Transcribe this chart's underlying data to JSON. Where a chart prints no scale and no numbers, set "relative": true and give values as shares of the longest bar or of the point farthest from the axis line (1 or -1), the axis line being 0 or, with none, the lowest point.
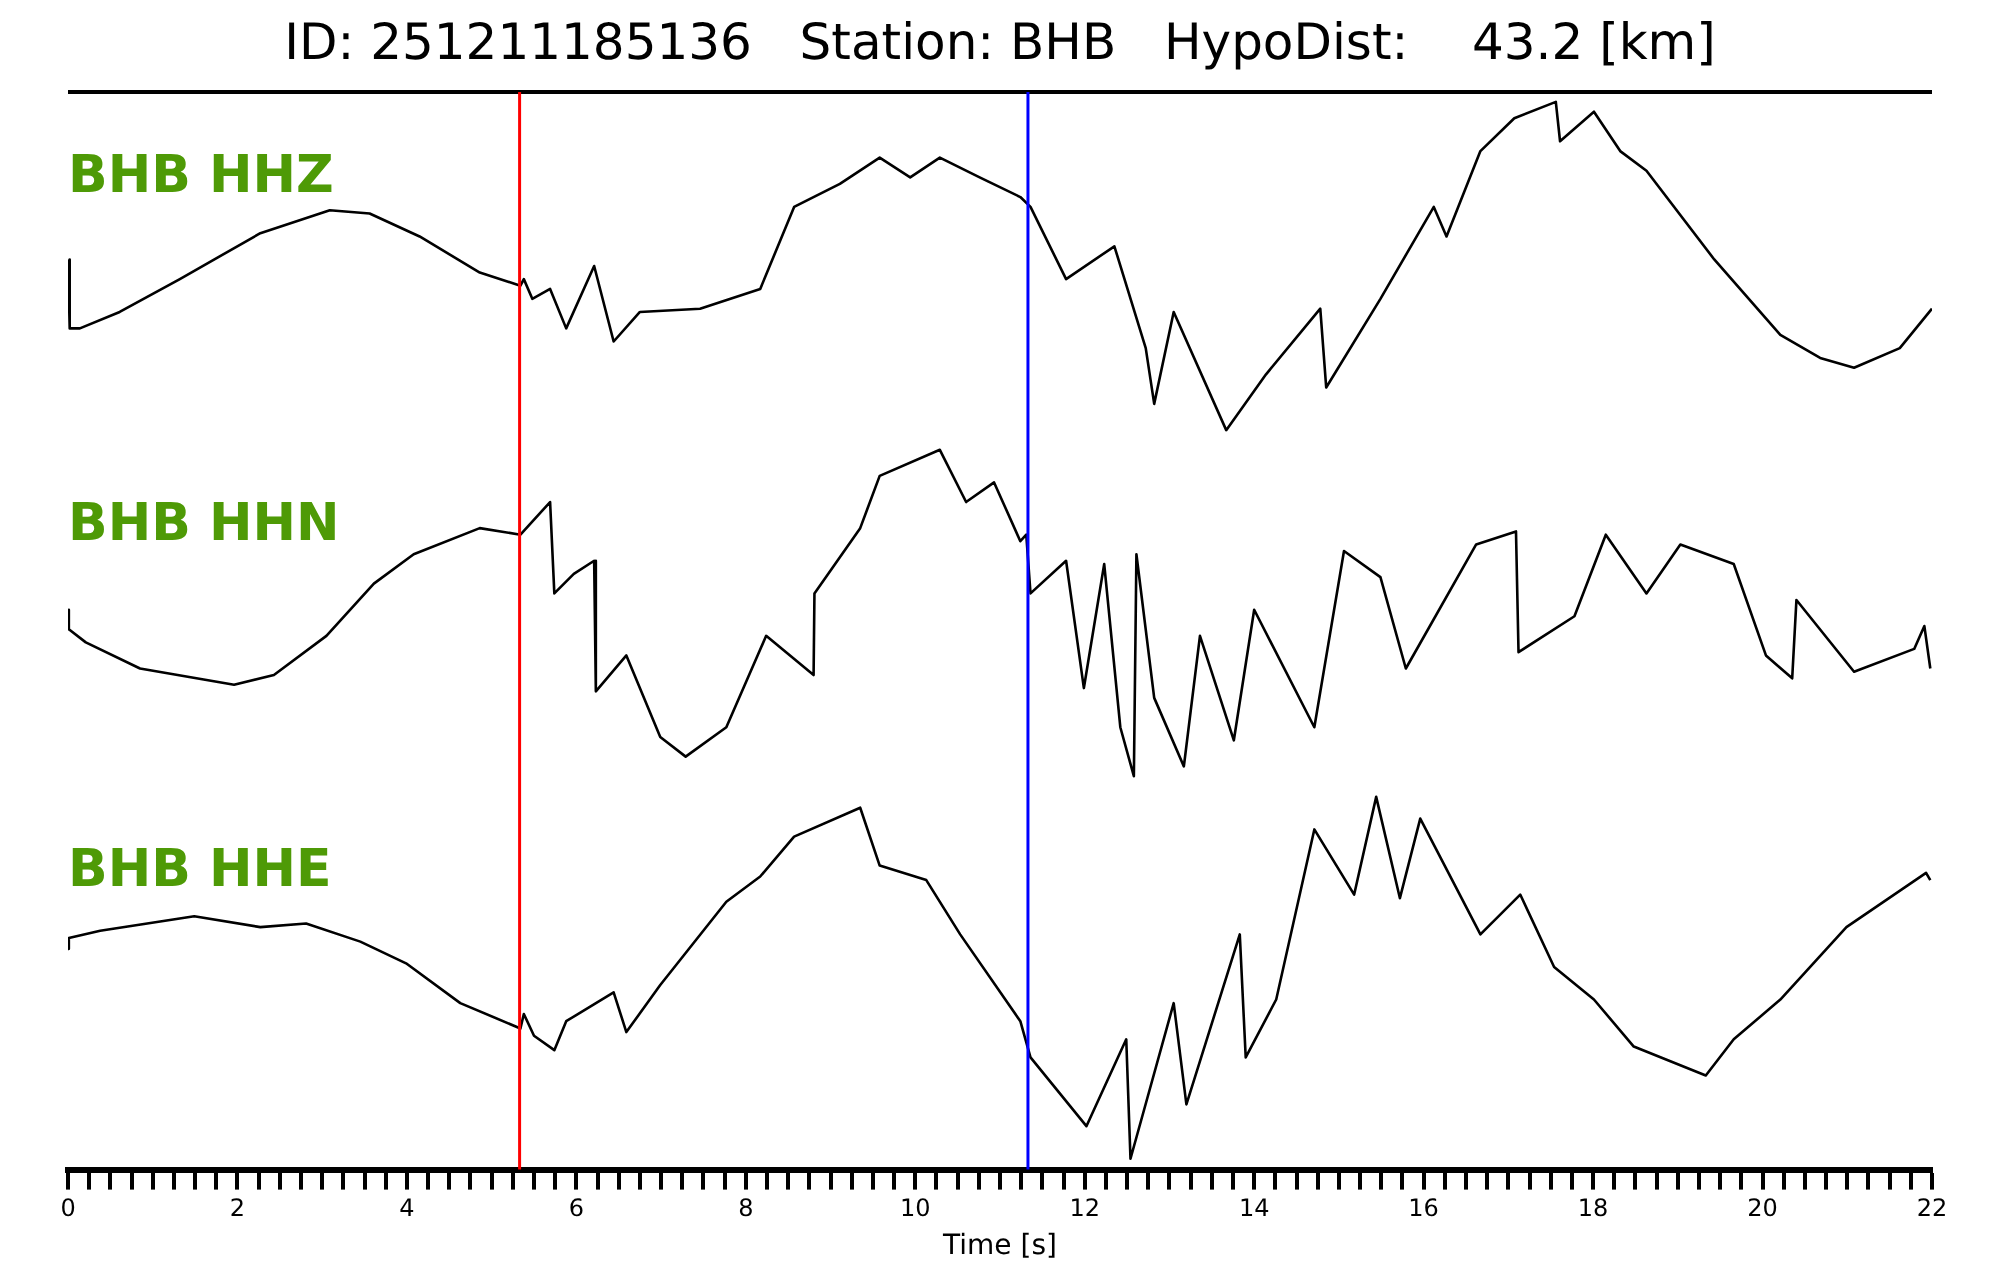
{
  "chart_data": [
    {
      "type": "line",
      "title": "ID: 251211185136   Station: BHB   HypoDist:    43.2 [km]",
      "relative": true,
      "xlim": [
        0,
        22
      ],
      "tick_labels": false,
      "x": [
        0,
        0.02,
        0.14,
        0.61,
        1.32,
        2.27,
        3.09,
        3.56,
        4.15,
        4.86,
        5.34,
        5.38,
        5.48,
        5.69,
        5.88,
        6.21,
        6.44,
        6.75,
        7.46,
        8.17,
        8.57,
        9.11,
        9.58,
        9.94,
        10.29,
        10.76,
        11.24,
        11.36,
        11.78,
        12.35,
        12.72,
        12.82,
        13.05,
        13.67,
        14.14,
        14.78,
        14.85,
        15.49,
        16.12,
        16.27,
        16.67,
        17.07,
        17.56,
        17.61,
        18.01,
        18.32,
        18.63,
        19.43,
        20.21,
        20.68,
        21.08,
        21.62,
        22
      ],
      "series": [
        {
          "name": "BHB HHZ",
          "color": "#000000",
          "values": [
            0.52,
            0.31,
            0.31,
            0.36,
            0.46,
            0.6,
            0.67,
            0.66,
            0.59,
            0.48,
            0.44,
            0.46,
            0.4,
            0.43,
            0.31,
            0.5,
            0.27,
            0.36,
            0.37,
            0.43,
            0.68,
            0.75,
            0.83,
            0.77,
            0.83,
            0.77,
            0.71,
            0.68,
            0.46,
            0.56,
            0.25,
            0.08,
            0.36,
            0,
            0.17,
            0.37,
            0.13,
            0.4,
            0.68,
            0.59,
            0.85,
            0.95,
            1,
            0.88,
            0.97,
            0.85,
            0.79,
            0.52,
            0.29,
            0.22,
            0.19,
            0.25,
            0.37
          ]
        }
      ],
      "ref_lines": [
        {
          "axis": "x",
          "value": 5.33,
          "color": "#ff0000"
        },
        {
          "axis": "x",
          "value": 11.33,
          "color": "#0000ff"
        }
      ]
    },
    {
      "type": "line",
      "relative": true,
      "xlim": [
        0,
        22
      ],
      "tick_labels": false,
      "x": [
        0,
        0.01,
        0.21,
        0.85,
        1.96,
        2.43,
        3.05,
        3.61,
        4.08,
        4.86,
        5.34,
        5.69,
        5.74,
        5.97,
        6.21,
        6.23,
        6.59,
        6.99,
        7.29,
        7.77,
        8.24,
        8.8,
        8.81,
        9.35,
        9.58,
        10.29,
        10.6,
        10.93,
        11.24,
        11.31,
        11.36,
        11.78,
        11.99,
        12.23,
        12.42,
        12.58,
        12.61,
        12.82,
        13.17,
        13.36,
        13.76,
        14,
        14.71,
        15.06,
        15.49,
        15.79,
        16.62,
        17.09,
        17.12,
        17.78,
        18.15,
        18.63,
        19.03,
        19.66,
        20.04,
        20.35,
        20.4,
        21.08,
        21.79,
        21.91,
        21.98
      ],
      "series": [
        {
          "name": "BHB HHN",
          "color": "#000000",
          "values": [
            0.51,
            0.45,
            0.41,
            0.33,
            0.28,
            0.31,
            0.43,
            0.59,
            0.68,
            0.76,
            0.74,
            0.84,
            0.56,
            0.62,
            0.66,
            0.26,
            0.37,
            0.12,
            0.06,
            0.15,
            0.43,
            0.31,
            0.56,
            0.76,
            0.92,
            1,
            0.84,
            0.9,
            0.72,
            0.74,
            0.56,
            0.66,
            0.27,
            0.65,
            0.15,
            0,
            0.68,
            0.24,
            0.03,
            0.43,
            0.11,
            0.51,
            0.15,
            0.69,
            0.61,
            0.33,
            0.71,
            0.75,
            0.38,
            0.49,
            0.74,
            0.56,
            0.71,
            0.65,
            0.37,
            0.3,
            0.54,
            0.32,
            0.39,
            0.46,
            0.33
          ]
        }
      ],
      "ref_lines": [
        {
          "axis": "x",
          "value": 5.33,
          "color": "#ff0000"
        },
        {
          "axis": "x",
          "value": 11.33,
          "color": "#0000ff"
        }
      ]
    },
    {
      "type": "line",
      "relative": true,
      "xlim": [
        0,
        22
      ],
      "xlabel": "Time [s]",
      "xticks": [
        0,
        {
          "value": 0.25,
          "label": null
        },
        {
          "value": 0.5,
          "label": null
        },
        {
          "value": 0.75,
          "label": null
        },
        {
          "value": 1,
          "label": null
        },
        {
          "value": 1.25,
          "label": null
        },
        {
          "value": 1.5,
          "label": null
        },
        {
          "value": 1.75,
          "label": null
        },
        2,
        {
          "value": 2.25,
          "label": null
        },
        {
          "value": 2.5,
          "label": null
        },
        {
          "value": 2.75,
          "label": null
        },
        {
          "value": 3,
          "label": null
        },
        {
          "value": 3.25,
          "label": null
        },
        {
          "value": 3.5,
          "label": null
        },
        {
          "value": 3.75,
          "label": null
        },
        4,
        {
          "value": 4.25,
          "label": null
        },
        {
          "value": 4.5,
          "label": null
        },
        {
          "value": 4.75,
          "label": null
        },
        {
          "value": 5,
          "label": null
        },
        {
          "value": 5.25,
          "label": null
        },
        {
          "value": 5.5,
          "label": null
        },
        {
          "value": 5.75,
          "label": null
        },
        6,
        {
          "value": 6.25,
          "label": null
        },
        {
          "value": 6.5,
          "label": null
        },
        {
          "value": 6.75,
          "label": null
        },
        {
          "value": 7,
          "label": null
        },
        {
          "value": 7.25,
          "label": null
        },
        {
          "value": 7.5,
          "label": null
        },
        {
          "value": 7.75,
          "label": null
        },
        8,
        {
          "value": 8.25,
          "label": null
        },
        {
          "value": 8.5,
          "label": null
        },
        {
          "value": 8.75,
          "label": null
        },
        {
          "value": 9,
          "label": null
        },
        {
          "value": 9.25,
          "label": null
        },
        {
          "value": 9.5,
          "label": null
        },
        {
          "value": 9.75,
          "label": null
        },
        10,
        {
          "value": 10.25,
          "label": null
        },
        {
          "value": 10.5,
          "label": null
        },
        {
          "value": 10.75,
          "label": null
        },
        {
          "value": 11,
          "label": null
        },
        {
          "value": 11.25,
          "label": null
        },
        {
          "value": 11.5,
          "label": null
        },
        {
          "value": 11.75,
          "label": null
        },
        12,
        {
          "value": 12.25,
          "label": null
        },
        {
          "value": 12.5,
          "label": null
        },
        {
          "value": 12.75,
          "label": null
        },
        {
          "value": 13,
          "label": null
        },
        {
          "value": 13.25,
          "label": null
        },
        {
          "value": 13.5,
          "label": null
        },
        {
          "value": 13.75,
          "label": null
        },
        14,
        {
          "value": 14.25,
          "label": null
        },
        {
          "value": 14.5,
          "label": null
        },
        {
          "value": 14.75,
          "label": null
        },
        {
          "value": 15,
          "label": null
        },
        {
          "value": 15.25,
          "label": null
        },
        {
          "value": 15.5,
          "label": null
        },
        {
          "value": 15.75,
          "label": null
        },
        16,
        {
          "value": 16.25,
          "label": null
        },
        {
          "value": 16.5,
          "label": null
        },
        {
          "value": 16.75,
          "label": null
        },
        {
          "value": 17,
          "label": null
        },
        {
          "value": 17.25,
          "label": null
        },
        {
          "value": 17.5,
          "label": null
        },
        {
          "value": 17.75,
          "label": null
        },
        18,
        {
          "value": 18.25,
          "label": null
        },
        {
          "value": 18.5,
          "label": null
        },
        {
          "value": 18.75,
          "label": null
        },
        {
          "value": 19,
          "label": null
        },
        {
          "value": 19.25,
          "label": null
        },
        {
          "value": 19.5,
          "label": null
        },
        {
          "value": 19.75,
          "label": null
        },
        20,
        {
          "value": 20.25,
          "label": null
        },
        {
          "value": 20.5,
          "label": null
        },
        {
          "value": 20.75,
          "label": null
        },
        {
          "value": 21,
          "label": null
        },
        {
          "value": 21.25,
          "label": null
        },
        {
          "value": 21.5,
          "label": null
        },
        {
          "value": 21.75,
          "label": null
        },
        22
      ],
      "x": [
        0,
        0.01,
        0.38,
        1.49,
        2.27,
        2.81,
        3.45,
        3.99,
        4.63,
        5.34,
        5.38,
        5.5,
        5.74,
        5.88,
        6.44,
        6.59,
        6.99,
        7.77,
        8.17,
        8.57,
        9.35,
        9.58,
        10.13,
        10.53,
        11.24,
        11.36,
        12.02,
        12.49,
        12.54,
        13.05,
        13.2,
        13.83,
        13.9,
        14.26,
        14.71,
        15.18,
        15.44,
        15.72,
        15.96,
        16.67,
        17.14,
        17.54,
        18.01,
        18.48,
        19.33,
        19.66,
        20.21,
        20.99,
        21.93,
        21.98
      ],
      "series": [
        {
          "name": "BHB HHE",
          "color": "#000000",
          "values": [
            0.58,
            0.61,
            0.63,
            0.67,
            0.64,
            0.65,
            0.6,
            0.54,
            0.43,
            0.36,
            0.4,
            0.34,
            0.3,
            0.38,
            0.46,
            0.35,
            0.48,
            0.71,
            0.78,
            0.89,
            0.97,
            0.81,
            0.77,
            0.62,
            0.38,
            0.28,
            0.09,
            0.33,
            0,
            0.43,
            0.15,
            0.62,
            0.28,
            0.44,
            0.91,
            0.73,
            1,
            0.72,
            0.94,
            0.62,
            0.73,
            0.53,
            0.44,
            0.31,
            0.23,
            0.33,
            0.44,
            0.64,
            0.79,
            0.77
          ]
        }
      ],
      "ref_lines": [
        {
          "axis": "x",
          "value": 5.33,
          "color": "#ff0000"
        },
        {
          "axis": "x",
          "value": 11.33,
          "color": "#0000ff"
        }
      ]
    }
  ]
}
